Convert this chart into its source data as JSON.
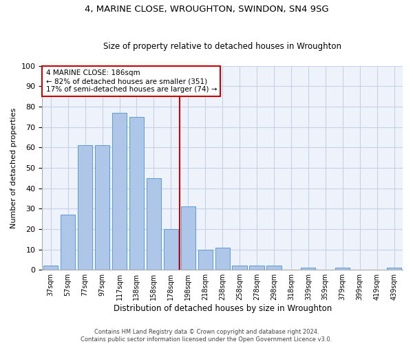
{
  "title": "4, MARINE CLOSE, WROUGHTON, SWINDON, SN4 9SG",
  "subtitle": "Size of property relative to detached houses in Wroughton",
  "xlabel": "Distribution of detached houses by size in Wroughton",
  "ylabel": "Number of detached properties",
  "bar_labels": [
    "37sqm",
    "57sqm",
    "77sqm",
    "97sqm",
    "117sqm",
    "138sqm",
    "158sqm",
    "178sqm",
    "198sqm",
    "218sqm",
    "238sqm",
    "258sqm",
    "278sqm",
    "298sqm",
    "318sqm",
    "339sqm",
    "359sqm",
    "379sqm",
    "399sqm",
    "419sqm",
    "439sqm"
  ],
  "bar_values": [
    2,
    27,
    61,
    61,
    77,
    75,
    45,
    20,
    31,
    10,
    11,
    2,
    2,
    2,
    0,
    1,
    0,
    1,
    0,
    0,
    1
  ],
  "bar_color": "#aec6e8",
  "bar_edge_color": "#5b9bd5",
  "vline_x": 7.5,
  "vline_color": "#cc0000",
  "ylim": [
    0,
    100
  ],
  "yticks": [
    0,
    10,
    20,
    30,
    40,
    50,
    60,
    70,
    80,
    90,
    100
  ],
  "annotation_title": "4 MARINE CLOSE: 186sqm",
  "annotation_line1": "← 82% of detached houses are smaller (351)",
  "annotation_line2": "17% of semi-detached houses are larger (74) →",
  "annotation_box_color": "#cc0000",
  "footer_line1": "Contains HM Land Registry data © Crown copyright and database right 2024.",
  "footer_line2": "Contains public sector information licensed under the Open Government Licence v3.0.",
  "bg_color": "#eef2fb",
  "grid_color": "#c8d0e8"
}
